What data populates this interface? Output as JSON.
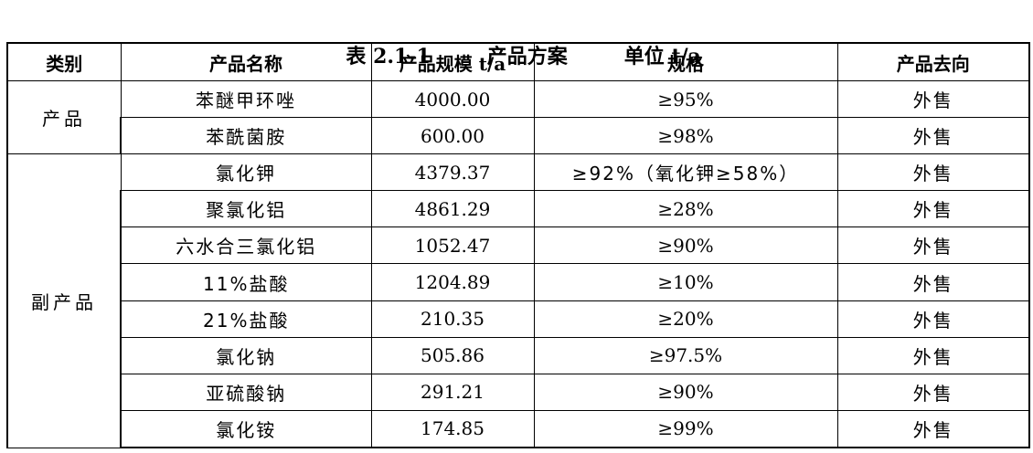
{
  "caption": {
    "table_no": "表 2.1-1",
    "title": "产品方案",
    "unit": "单位 t/a"
  },
  "headers": [
    "类别",
    "产品名称",
    "产品规模 t/a",
    "规格",
    "产品去向"
  ],
  "groups": [
    {
      "category": "产品",
      "rows": [
        [
          "苯醚甲环唑",
          "4000.00",
          "≥95%",
          "外售"
        ],
        [
          "苯酰菌胺",
          "600.00",
          "≥98%",
          "外售"
        ]
      ]
    },
    {
      "category": "副产品",
      "rows": [
        [
          "氯化钾",
          "4379.37",
          "≥92%（氧化钾≥58%）",
          "外售"
        ],
        [
          "聚氯化铝",
          "4861.29",
          "≥28%",
          "外售"
        ],
        [
          "六水合三氯化铝",
          "1052.47",
          "≥90%",
          "外售"
        ],
        [
          "11%盐酸",
          "1204.89",
          "≥10%",
          "外售"
        ],
        [
          "21%盐酸",
          "210.35",
          "≥20%",
          "外售"
        ],
        [
          "氯化钠",
          "505.86",
          "≥97.5%",
          "外售"
        ],
        [
          "亚硫酸钠",
          "291.21",
          "≥90%",
          "外售"
        ],
        [
          "氯化铵",
          "174.85",
          "≥99%",
          "外售"
        ]
      ]
    }
  ]
}
